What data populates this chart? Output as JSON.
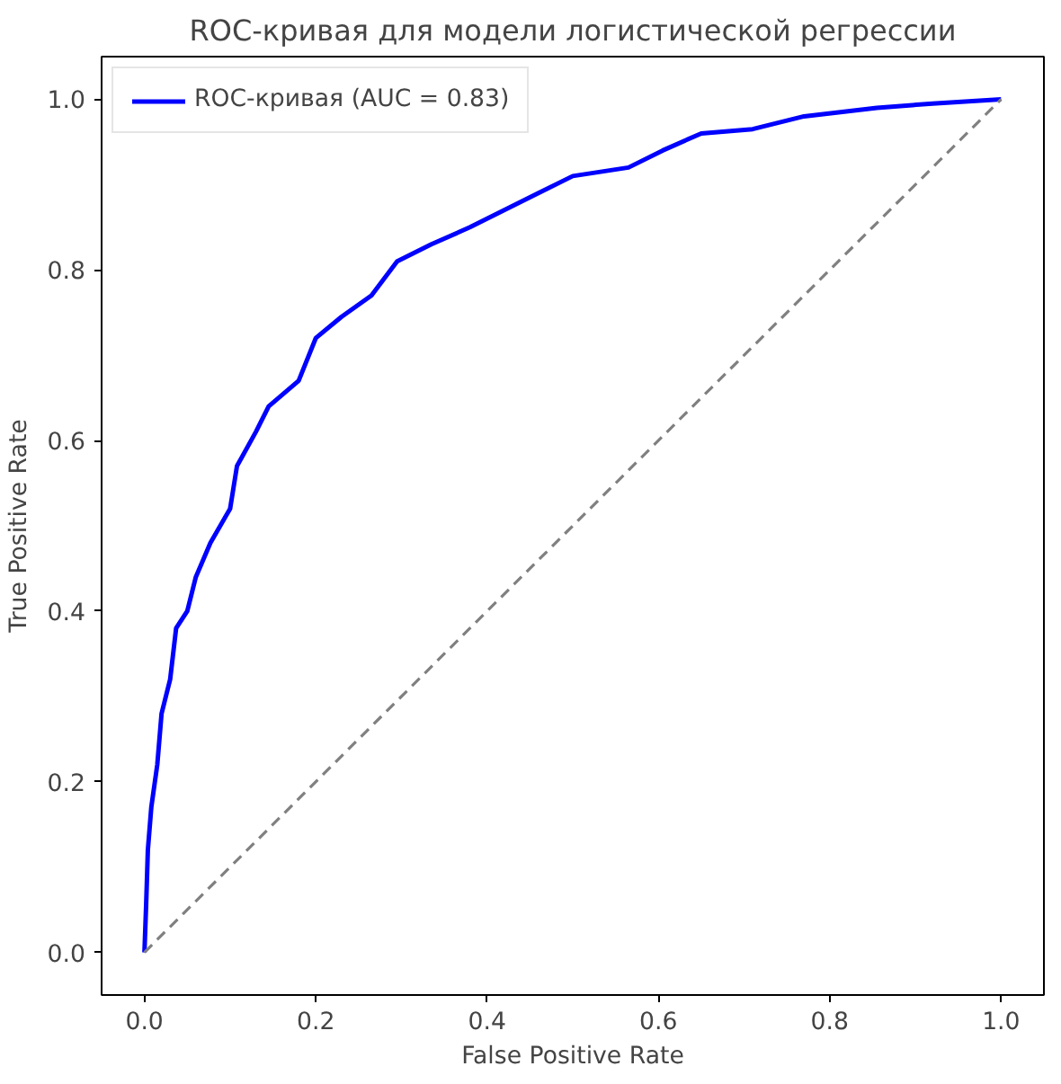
{
  "chart_data": {
    "type": "line",
    "title": "ROC-кривая для модели логистической регрессии",
    "xlabel": "False Positive Rate",
    "ylabel": "True Positive Rate",
    "xlim": [
      -0.05,
      1.05
    ],
    "ylim": [
      -0.05,
      1.05
    ],
    "xticks": [
      {
        "value": 0,
        "label": "0.0"
      },
      {
        "value": 0.2,
        "label": "0.2"
      },
      {
        "value": 0.4,
        "label": "0.4"
      },
      {
        "value": 0.6,
        "label": "0.6"
      },
      {
        "value": 0.8,
        "label": "0.8"
      },
      {
        "value": 1,
        "label": "1.0"
      }
    ],
    "yticks": [
      {
        "value": 0,
        "label": "0.0"
      },
      {
        "value": 0.2,
        "label": "0.2"
      },
      {
        "value": 0.4,
        "label": "0.4"
      },
      {
        "value": 0.6,
        "label": "0.6"
      },
      {
        "value": 0.8,
        "label": "0.8"
      },
      {
        "value": 1,
        "label": "1.0"
      }
    ],
    "grid": false,
    "legend": "top left",
    "marker": "none",
    "series": [
      {
        "name": "ROC-кривая (AUC = 0.83)",
        "color": "#0000ff",
        "line_style": "solid",
        "x": [
          0,
          0.002,
          0.004,
          0.008,
          0.015,
          0.02,
          0.03,
          0.037,
          0.05,
          0.06,
          0.077,
          0.1,
          0.108,
          0.13,
          0.145,
          0.18,
          0.2,
          0.23,
          0.265,
          0.295,
          0.335,
          0.38,
          0.42,
          0.46,
          0.5,
          0.565,
          0.605,
          0.65,
          0.71,
          0.77,
          0.855,
          0.92,
          1
        ],
        "values": [
          0,
          0.056,
          0.12,
          0.17,
          0.22,
          0.28,
          0.32,
          0.38,
          0.4,
          0.44,
          0.48,
          0.52,
          0.57,
          0.61,
          0.64,
          0.67,
          0.72,
          0.745,
          0.77,
          0.81,
          0.83,
          0.85,
          0.87,
          0.89,
          0.91,
          0.92,
          0.94,
          0.96,
          0.965,
          0.98,
          0.99,
          0.995,
          1
        ]
      },
      {
        "color": "#808080",
        "line_style": "dashed",
        "x": [
          0,
          1
        ],
        "values": [
          0,
          1
        ]
      }
    ]
  }
}
